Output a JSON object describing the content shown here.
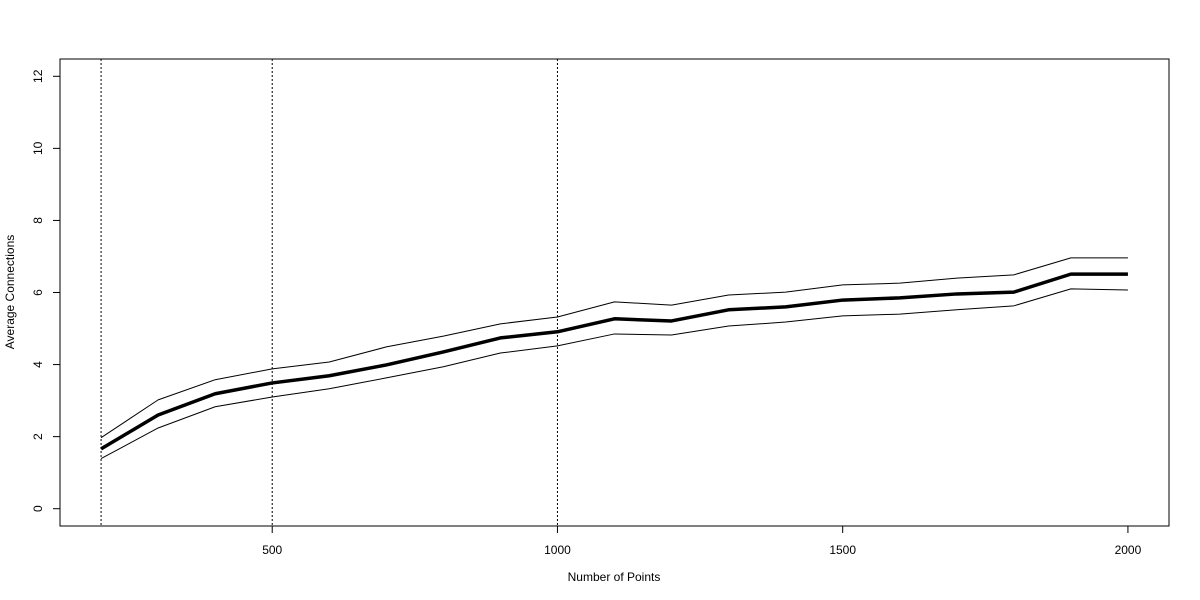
{
  "chart_data": {
    "type": "line",
    "x_label": "Number of Points",
    "y_label": "Average Connections",
    "x": [
      200,
      300,
      400,
      500,
      600,
      700,
      800,
      900,
      1000,
      1100,
      1200,
      1300,
      1400,
      1500,
      1600,
      1700,
      1800,
      1900,
      2000
    ],
    "series": [
      {
        "color": "#000000",
        "width": 1,
        "values": [
          1.97,
          3.02,
          3.58,
          3.88,
          4.07,
          4.49,
          4.79,
          5.13,
          5.32,
          5.74,
          5.65,
          5.93,
          6.01,
          6.21,
          6.26,
          6.4,
          6.49,
          6.96,
          6.96
        ]
      },
      {
        "color": "#000000",
        "width": 3.5,
        "values": [
          1.66,
          2.6,
          3.19,
          3.49,
          3.69,
          3.99,
          4.35,
          4.74,
          4.91,
          5.27,
          5.21,
          5.52,
          5.6,
          5.79,
          5.85,
          5.96,
          6.01,
          6.51,
          6.51
        ]
      },
      {
        "color": "#000000",
        "width": 1,
        "values": [
          1.39,
          2.24,
          2.83,
          3.1,
          3.33,
          3.63,
          3.94,
          4.32,
          4.52,
          4.85,
          4.82,
          5.07,
          5.18,
          5.35,
          5.4,
          5.52,
          5.63,
          6.1,
          6.07
        ]
      }
    ],
    "vlines": [
      200,
      500,
      1000
    ],
    "xlim": [
      128,
      2072
    ],
    "ylim": [
      -0.48,
      12.48
    ],
    "xticks": [
      500,
      1000,
      1500,
      2000
    ],
    "yticks": [
      0,
      2,
      4,
      6,
      8,
      10,
      12
    ]
  }
}
